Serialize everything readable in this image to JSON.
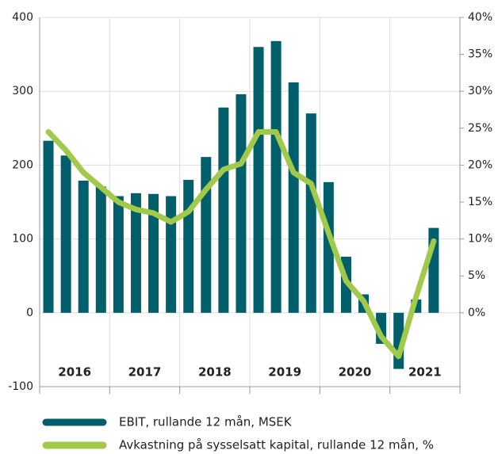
{
  "chart_data": {
    "type": "bar_line",
    "groups": [
      "2016",
      "2017",
      "2018",
      "2019",
      "2020",
      "2021"
    ],
    "categories": [
      null,
      null,
      null,
      null,
      null,
      null,
      null,
      null,
      null,
      null,
      null,
      null,
      null,
      null,
      null,
      null,
      null,
      null,
      null,
      null,
      null,
      null,
      null
    ],
    "series": [
      {
        "name": "EBIT, rullande 12 mån, MSEK",
        "color": "#005f6b",
        "type": "bar",
        "values": [
          233,
          213,
          179,
          171,
          158,
          162,
          161,
          158,
          180,
          211,
          278,
          296,
          360,
          368,
          312,
          270,
          177,
          76,
          25,
          -42,
          -76,
          18,
          115
        ]
      },
      {
        "name": "Avkastning på sysselsatt kapital, rullande 12 mån, %",
        "color": "#a3c94a",
        "type": "line",
        "axis": "y2",
        "values": [
          24.5,
          22,
          19,
          17,
          15,
          14,
          13.5,
          12.3,
          13.7,
          16.7,
          19.4,
          20.2,
          24.5,
          24.5,
          19,
          17.5,
          10.8,
          4.3,
          1.6,
          -3.2,
          -5.9,
          2.2,
          9.7
        ]
      }
    ],
    "ylim": [
      -100,
      400
    ],
    "yticks": [
      -100,
      0,
      100,
      200,
      300,
      400
    ],
    "y2lim": [
      -10,
      40
    ],
    "y2ticks": [
      {
        "value": 0,
        "label": "0%"
      },
      {
        "value": 5,
        "label": "5%"
      },
      {
        "value": 10,
        "label": "10%"
      },
      {
        "value": 15,
        "label": "15%"
      },
      {
        "value": 20,
        "label": "20%"
      },
      {
        "value": 25,
        "label": "25%"
      },
      {
        "value": 30,
        "label": "30%"
      },
      {
        "value": 35,
        "label": "35%"
      },
      {
        "value": 40,
        "label": "40%"
      }
    ],
    "grid": true
  }
}
